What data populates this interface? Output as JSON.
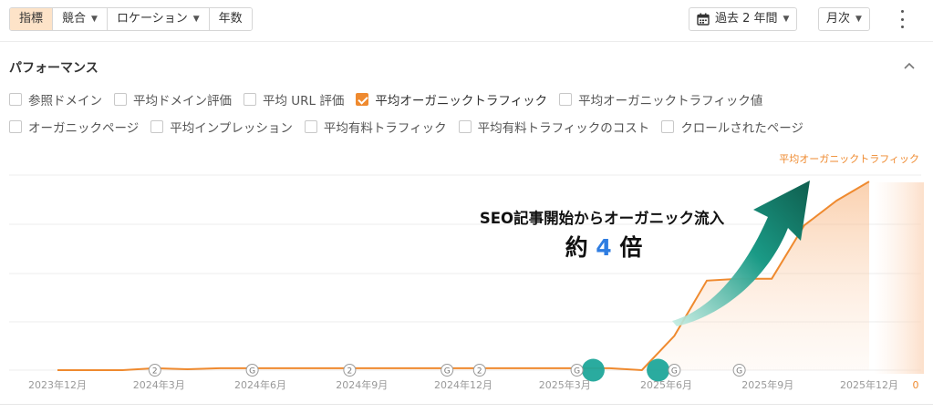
{
  "toolbar": {
    "tabs": [
      {
        "label": "指標",
        "active": true,
        "dropdown": false
      },
      {
        "label": "競合",
        "active": false,
        "dropdown": true
      },
      {
        "label": "ロケーション",
        "active": false,
        "dropdown": true
      },
      {
        "label": "年数",
        "active": false,
        "dropdown": false
      }
    ],
    "date_range": "過去 2 年間",
    "interval": "月次"
  },
  "panel": {
    "title": "パフォーマンス",
    "metrics_row1": [
      {
        "label": "参照ドメイン",
        "checked": false
      },
      {
        "label": "平均ドメイン評価",
        "checked": false
      },
      {
        "label": "平均 URL 評価",
        "checked": false
      },
      {
        "label": "平均オーガニックトラフィック",
        "checked": true
      },
      {
        "label": "平均オーガニックトラフィック値",
        "checked": false
      }
    ],
    "metrics_row2": [
      {
        "label": "オーガニックページ",
        "checked": false
      },
      {
        "label": "平均インプレッション",
        "checked": false
      },
      {
        "label": "平均有料トラフィック",
        "checked": false
      },
      {
        "label": "平均有料トラフィックのコスト",
        "checked": false
      },
      {
        "label": "クロールされたページ",
        "checked": false
      }
    ]
  },
  "chart_data": {
    "type": "area",
    "series": [
      {
        "name": "平均オーガニックトラフィック",
        "color": "#ef8a2f",
        "values": [
          0.0,
          0.0,
          0.0,
          0.01,
          0.005,
          0.01,
          0.01,
          0.01,
          0.01,
          0.01,
          0.01,
          0.01,
          0.01,
          0.01,
          0.01,
          0.01,
          0.01,
          0.01,
          0.0,
          0.18,
          0.47,
          0.48,
          0.48,
          0.76,
          0.89,
          0.99
        ]
      }
    ],
    "x_tick_labels": [
      "2023年12月",
      "2024年3月",
      "2024年6月",
      "2024年9月",
      "2024年12月",
      "2025年3月",
      "2025年6月",
      "2025年9月",
      "2025年12月"
    ],
    "y_tick_labels": [
      "0"
    ],
    "markers": [
      {
        "type": "annotation",
        "label": "2",
        "index": 3
      },
      {
        "type": "google-update",
        "label": "G",
        "index": 6
      },
      {
        "type": "annotation",
        "label": "2",
        "index": 9
      },
      {
        "type": "google-update",
        "label": "G",
        "index": 12
      },
      {
        "type": "annotation",
        "label": "2",
        "index": 13
      },
      {
        "type": "google-update",
        "label": "G",
        "index": 16
      },
      {
        "type": "google-update",
        "label": "G",
        "index": 19
      },
      {
        "type": "google-update",
        "label": "G",
        "index": 21
      }
    ],
    "highlights": [
      16.5,
      18.5
    ],
    "annotation": {
      "line1": "SEO記事開始からオーガニック流入",
      "line2_prefix": "約",
      "line2_value": "4",
      "line2_suffix": "倍"
    },
    "grid": true
  }
}
